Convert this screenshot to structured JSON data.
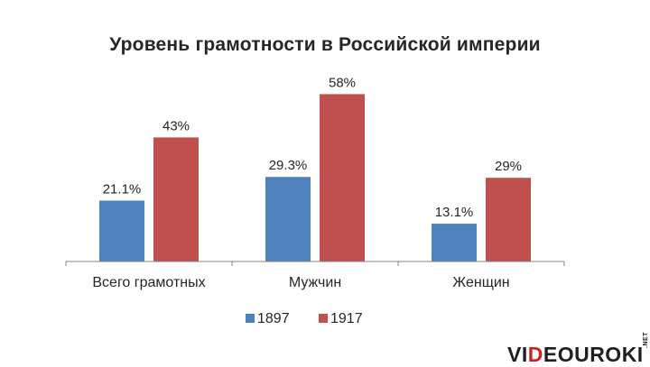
{
  "title": "Уровень грамотности в Российской империи",
  "chart_data": {
    "type": "bar",
    "title": "Уровень грамотности в Российской империи",
    "categories": [
      "Всего грамотных",
      "Мужчин",
      "Женщин"
    ],
    "series": [
      {
        "name": "1897",
        "values": [
          21.1,
          29.3,
          13.1
        ],
        "labels": [
          "21.1%",
          "29.3%",
          "13.1%"
        ],
        "color": "#4f81bd"
      },
      {
        "name": "1917",
        "values": [
          43,
          58,
          29
        ],
        "labels": [
          "43%",
          "58%",
          "29%"
        ],
        "color": "#c0504d"
      }
    ],
    "ylim": [
      0,
      60
    ],
    "grid": false,
    "legend": "bottom",
    "xlabel": "",
    "ylabel": ""
  },
  "logo": {
    "pre": "VI",
    "accent": "D",
    "post": "EOUROKI",
    "suffix": ".NET"
  }
}
